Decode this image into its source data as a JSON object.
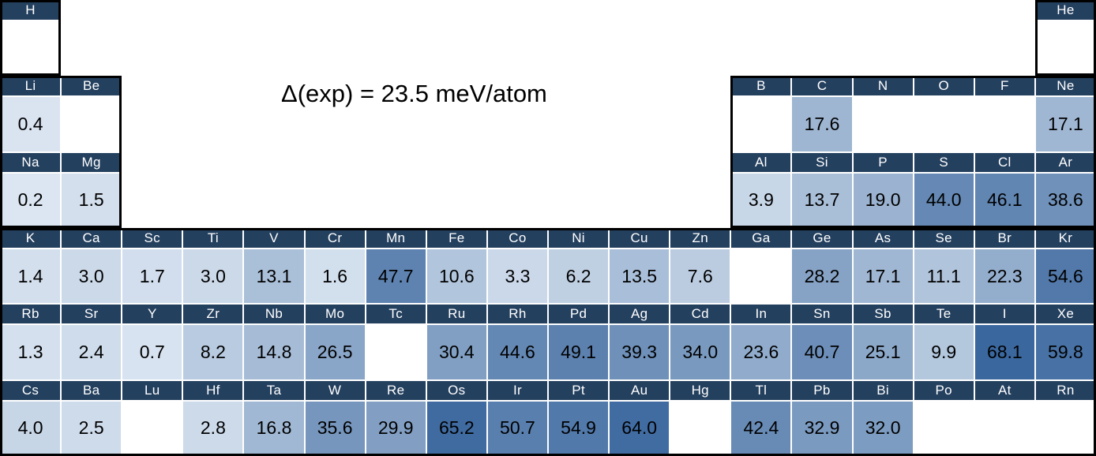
{
  "chart_data": {
    "type": "heatmap",
    "layout": "periodic-table",
    "title": "Δ(exp) = 23.5 meV/atom",
    "value_unit": "meV/atom",
    "grid": {
      "columns": 18,
      "rows": 6
    },
    "legend": "cell shading encodes value: light blue = low, dark blue = high; white = no data",
    "color_scale": {
      "min_color": "#DEE8F3",
      "max_color": "#3A679E",
      "blank_color": "#FFFFFF",
      "header_bg": "#24405F",
      "header_text": "#FFFFFF",
      "value_text": "#000000",
      "outline_color": "#000000",
      "max_value": 68.1,
      "gamma": 0.7
    },
    "cells": [
      {
        "symbol": "H",
        "row": 1,
        "col": 1,
        "value": ""
      },
      {
        "symbol": "He",
        "row": 1,
        "col": 18,
        "value": ""
      },
      {
        "symbol": "Li",
        "row": 2,
        "col": 1,
        "value": "0.4"
      },
      {
        "symbol": "Be",
        "row": 2,
        "col": 2,
        "value": ""
      },
      {
        "symbol": "B",
        "row": 2,
        "col": 13,
        "value": ""
      },
      {
        "symbol": "C",
        "row": 2,
        "col": 14,
        "value": "17.6"
      },
      {
        "symbol": "N",
        "row": 2,
        "col": 15,
        "value": ""
      },
      {
        "symbol": "O",
        "row": 2,
        "col": 16,
        "value": ""
      },
      {
        "symbol": "F",
        "row": 2,
        "col": 17,
        "value": ""
      },
      {
        "symbol": "Ne",
        "row": 2,
        "col": 18,
        "value": "17.1"
      },
      {
        "symbol": "Na",
        "row": 3,
        "col": 1,
        "value": "0.2"
      },
      {
        "symbol": "Mg",
        "row": 3,
        "col": 2,
        "value": "1.5"
      },
      {
        "symbol": "Al",
        "row": 3,
        "col": 13,
        "value": "3.9"
      },
      {
        "symbol": "Si",
        "row": 3,
        "col": 14,
        "value": "13.7"
      },
      {
        "symbol": "P",
        "row": 3,
        "col": 15,
        "value": "19.0"
      },
      {
        "symbol": "S",
        "row": 3,
        "col": 16,
        "value": "44.0"
      },
      {
        "symbol": "Cl",
        "row": 3,
        "col": 17,
        "value": "46.1"
      },
      {
        "symbol": "Ar",
        "row": 3,
        "col": 18,
        "value": "38.6"
      },
      {
        "symbol": "K",
        "row": 4,
        "col": 1,
        "value": "1.4"
      },
      {
        "symbol": "Ca",
        "row": 4,
        "col": 2,
        "value": "3.0"
      },
      {
        "symbol": "Sc",
        "row": 4,
        "col": 3,
        "value": "1.7"
      },
      {
        "symbol": "Ti",
        "row": 4,
        "col": 4,
        "value": "3.0"
      },
      {
        "symbol": "V",
        "row": 4,
        "col": 5,
        "value": "13.1"
      },
      {
        "symbol": "Cr",
        "row": 4,
        "col": 6,
        "value": "1.6"
      },
      {
        "symbol": "Mn",
        "row": 4,
        "col": 7,
        "value": "47.7"
      },
      {
        "symbol": "Fe",
        "row": 4,
        "col": 8,
        "value": "10.6"
      },
      {
        "symbol": "Co",
        "row": 4,
        "col": 9,
        "value": "3.3"
      },
      {
        "symbol": "Ni",
        "row": 4,
        "col": 10,
        "value": "6.2"
      },
      {
        "symbol": "Cu",
        "row": 4,
        "col": 11,
        "value": "13.5"
      },
      {
        "symbol": "Zn",
        "row": 4,
        "col": 12,
        "value": "7.6"
      },
      {
        "symbol": "Ga",
        "row": 4,
        "col": 13,
        "value": ""
      },
      {
        "symbol": "Ge",
        "row": 4,
        "col": 14,
        "value": "28.2"
      },
      {
        "symbol": "As",
        "row": 4,
        "col": 15,
        "value": "17.1"
      },
      {
        "symbol": "Se",
        "row": 4,
        "col": 16,
        "value": "11.1"
      },
      {
        "symbol": "Br",
        "row": 4,
        "col": 17,
        "value": "22.3"
      },
      {
        "symbol": "Kr",
        "row": 4,
        "col": 18,
        "value": "54.6"
      },
      {
        "symbol": "Rb",
        "row": 5,
        "col": 1,
        "value": "1.3"
      },
      {
        "symbol": "Sr",
        "row": 5,
        "col": 2,
        "value": "2.4"
      },
      {
        "symbol": "Y",
        "row": 5,
        "col": 3,
        "value": "0.7"
      },
      {
        "symbol": "Zr",
        "row": 5,
        "col": 4,
        "value": "8.2"
      },
      {
        "symbol": "Nb",
        "row": 5,
        "col": 5,
        "value": "14.8"
      },
      {
        "symbol": "Mo",
        "row": 5,
        "col": 6,
        "value": "26.5"
      },
      {
        "symbol": "Tc",
        "row": 5,
        "col": 7,
        "value": ""
      },
      {
        "symbol": "Ru",
        "row": 5,
        "col": 8,
        "value": "30.4"
      },
      {
        "symbol": "Rh",
        "row": 5,
        "col": 9,
        "value": "44.6"
      },
      {
        "symbol": "Pd",
        "row": 5,
        "col": 10,
        "value": "49.1"
      },
      {
        "symbol": "Ag",
        "row": 5,
        "col": 11,
        "value": "39.3"
      },
      {
        "symbol": "Cd",
        "row": 5,
        "col": 12,
        "value": "34.0"
      },
      {
        "symbol": "In",
        "row": 5,
        "col": 13,
        "value": "23.6"
      },
      {
        "symbol": "Sn",
        "row": 5,
        "col": 14,
        "value": "40.7"
      },
      {
        "symbol": "Sb",
        "row": 5,
        "col": 15,
        "value": "25.1"
      },
      {
        "symbol": "Te",
        "row": 5,
        "col": 16,
        "value": "9.9"
      },
      {
        "symbol": "I",
        "row": 5,
        "col": 17,
        "value": "68.1"
      },
      {
        "symbol": "Xe",
        "row": 5,
        "col": 18,
        "value": "59.8"
      },
      {
        "symbol": "Cs",
        "row": 6,
        "col": 1,
        "value": "4.0"
      },
      {
        "symbol": "Ba",
        "row": 6,
        "col": 2,
        "value": "2.5"
      },
      {
        "symbol": "Lu",
        "row": 6,
        "col": 3,
        "value": ""
      },
      {
        "symbol": "Hf",
        "row": 6,
        "col": 4,
        "value": "2.8"
      },
      {
        "symbol": "Ta",
        "row": 6,
        "col": 5,
        "value": "16.8"
      },
      {
        "symbol": "W",
        "row": 6,
        "col": 6,
        "value": "35.6"
      },
      {
        "symbol": "Re",
        "row": 6,
        "col": 7,
        "value": "29.9"
      },
      {
        "symbol": "Os",
        "row": 6,
        "col": 8,
        "value": "65.2"
      },
      {
        "symbol": "Ir",
        "row": 6,
        "col": 9,
        "value": "50.7"
      },
      {
        "symbol": "Pt",
        "row": 6,
        "col": 10,
        "value": "54.9"
      },
      {
        "symbol": "Au",
        "row": 6,
        "col": 11,
        "value": "64.0"
      },
      {
        "symbol": "Hg",
        "row": 6,
        "col": 12,
        "value": ""
      },
      {
        "symbol": "Tl",
        "row": 6,
        "col": 13,
        "value": "42.4"
      },
      {
        "symbol": "Pb",
        "row": 6,
        "col": 14,
        "value": "32.9"
      },
      {
        "symbol": "Bi",
        "row": 6,
        "col": 15,
        "value": "32.0"
      },
      {
        "symbol": "Po",
        "row": 6,
        "col": 16,
        "value": ""
      },
      {
        "symbol": "At",
        "row": 6,
        "col": 17,
        "value": ""
      },
      {
        "symbol": "Rn",
        "row": 6,
        "col": 18,
        "value": ""
      }
    ]
  }
}
